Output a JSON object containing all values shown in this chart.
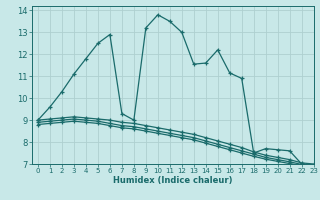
{
  "xlabel": "Humidex (Indice chaleur)",
  "background_color": "#c8e8e8",
  "grid_color": "#aed0d0",
  "line_color": "#1a6b6b",
  "xlim": [
    -0.5,
    23
  ],
  "ylim": [
    7,
    14.2
  ],
  "xticks": [
    0,
    1,
    2,
    3,
    4,
    5,
    6,
    7,
    8,
    9,
    10,
    11,
    12,
    13,
    14,
    15,
    16,
    17,
    18,
    19,
    20,
    21,
    22,
    23
  ],
  "yticks": [
    7,
    8,
    9,
    10,
    11,
    12,
    13,
    14
  ],
  "series": [
    {
      "x": [
        0,
        1,
        2,
        3,
        4,
        5,
        6,
        7,
        8,
        9,
        10,
        11,
        12,
        13,
        14,
        15,
        16,
        17,
        18,
        19,
        20,
        21,
        22,
        23
      ],
      "y": [
        9.0,
        9.6,
        10.3,
        11.1,
        11.8,
        12.5,
        12.9,
        9.3,
        9.0,
        13.2,
        13.8,
        13.5,
        13.0,
        11.55,
        11.6,
        12.2,
        11.15,
        10.9,
        7.5,
        7.7,
        7.65,
        7.6,
        7.0,
        6.95
      ]
    },
    {
      "x": [
        0,
        1,
        2,
        3,
        4,
        5,
        6,
        7,
        8,
        9,
        10,
        11,
        12,
        13,
        14,
        15,
        16,
        17,
        18,
        19,
        20,
        21,
        22,
        23
      ],
      "y": [
        9.0,
        9.05,
        9.1,
        9.15,
        9.1,
        9.05,
        9.0,
        8.9,
        8.85,
        8.75,
        8.65,
        8.55,
        8.45,
        8.35,
        8.2,
        8.05,
        7.9,
        7.75,
        7.55,
        7.4,
        7.3,
        7.2,
        7.05,
        7.0
      ]
    },
    {
      "x": [
        0,
        1,
        2,
        3,
        4,
        5,
        6,
        7,
        8,
        9,
        10,
        11,
        12,
        13,
        14,
        15,
        16,
        17,
        18,
        19,
        20,
        21,
        22,
        23
      ],
      "y": [
        8.9,
        8.95,
        9.0,
        9.05,
        9.0,
        8.95,
        8.85,
        8.75,
        8.7,
        8.6,
        8.5,
        8.4,
        8.3,
        8.2,
        8.05,
        7.9,
        7.75,
        7.6,
        7.45,
        7.3,
        7.2,
        7.1,
        6.98,
        6.93
      ]
    },
    {
      "x": [
        0,
        1,
        2,
        3,
        4,
        5,
        6,
        7,
        8,
        9,
        10,
        11,
        12,
        13,
        14,
        15,
        16,
        17,
        18,
        19,
        20,
        21,
        22,
        23
      ],
      "y": [
        8.8,
        8.85,
        8.9,
        8.95,
        8.9,
        8.85,
        8.75,
        8.65,
        8.6,
        8.5,
        8.4,
        8.3,
        8.2,
        8.1,
        7.95,
        7.8,
        7.65,
        7.5,
        7.35,
        7.22,
        7.12,
        7.02,
        6.92,
        6.87
      ]
    }
  ]
}
